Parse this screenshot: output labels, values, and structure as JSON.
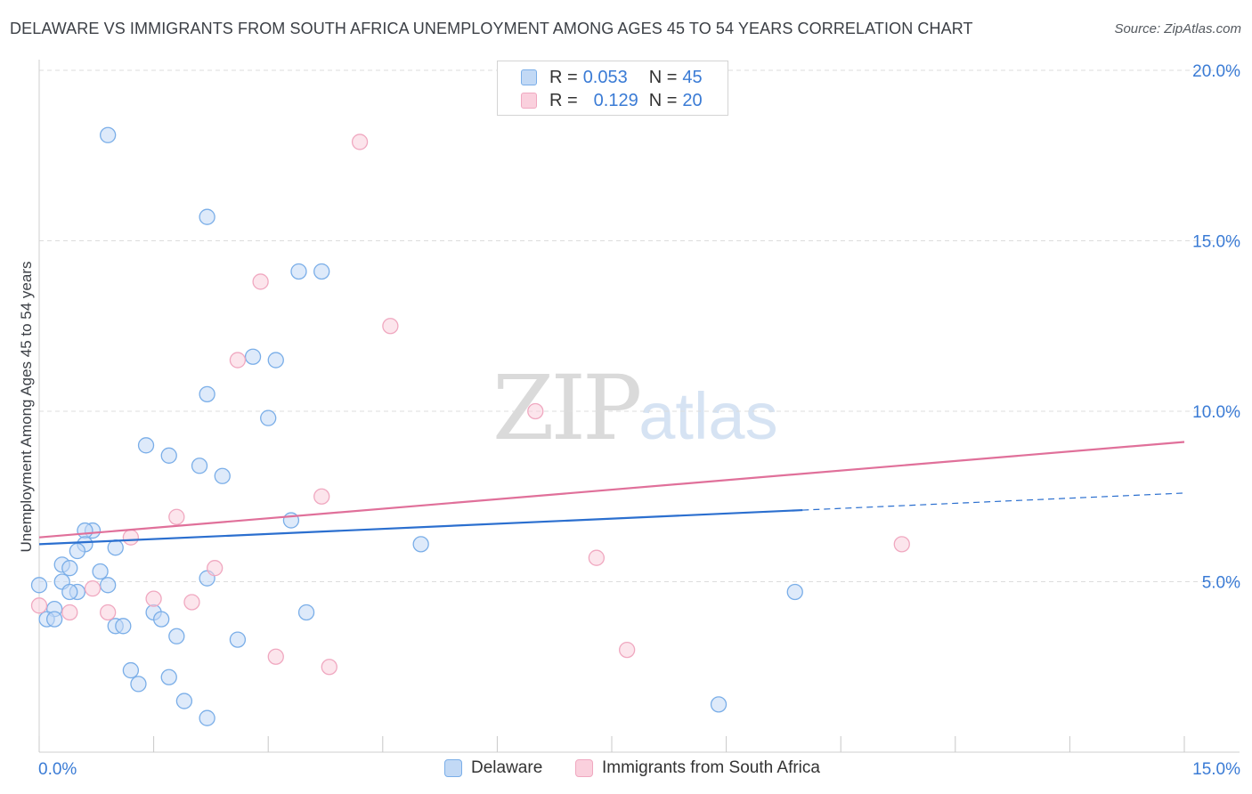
{
  "chart_data": {
    "type": "scatter",
    "title": "DELAWARE VS IMMIGRANTS FROM SOUTH AFRICA UNEMPLOYMENT AMONG AGES 45 TO 54 YEARS CORRELATION CHART",
    "source": "Source: ZipAtlas.com",
    "ylabel": "Unemployment Among Ages 45 to 54 years",
    "xlim": [
      0,
      15
    ],
    "ylim": [
      0,
      20
    ],
    "x_ticks": [
      {
        "value": 0,
        "label": "0.0%"
      },
      {
        "value": 15,
        "label": "15.0%"
      }
    ],
    "y_ticks": [
      {
        "value": 5,
        "label": "5.0%"
      },
      {
        "value": 10,
        "label": "10.0%"
      },
      {
        "value": 15,
        "label": "15.0%"
      },
      {
        "value": 20,
        "label": "20.0%"
      }
    ],
    "legend": [
      {
        "r_label": "R =",
        "r": "0.053",
        "n_label": "N =",
        "n": "45"
      },
      {
        "r_label": "R =",
        "r": "0.129",
        "n_label": "N =",
        "n": "20"
      }
    ],
    "series": [
      {
        "name": "Delaware",
        "color": "#7aaee8",
        "fill": "#c2d9f5",
        "trend_color": "#2b6fcf",
        "trend": {
          "x0": 0,
          "y0": 6.1,
          "x1": 10.0,
          "y1": 7.1,
          "dash_x1": 15.0,
          "dash_y1": 7.6
        },
        "points": [
          [
            0.9,
            18.1
          ],
          [
            2.2,
            15.7
          ],
          [
            3.4,
            14.1
          ],
          [
            3.7,
            14.1
          ],
          [
            2.8,
            11.6
          ],
          [
            3.1,
            11.5
          ],
          [
            2.2,
            10.5
          ],
          [
            3.0,
            9.8
          ],
          [
            1.4,
            9.0
          ],
          [
            1.7,
            8.7
          ],
          [
            2.1,
            8.4
          ],
          [
            2.4,
            8.1
          ],
          [
            3.3,
            6.8
          ],
          [
            0.7,
            6.5
          ],
          [
            0.6,
            6.5
          ],
          [
            0.6,
            6.1
          ],
          [
            0.5,
            5.9
          ],
          [
            1.0,
            6.0
          ],
          [
            0.3,
            5.5
          ],
          [
            0.4,
            5.4
          ],
          [
            0.8,
            5.3
          ],
          [
            0.3,
            5.0
          ],
          [
            0.0,
            4.9
          ],
          [
            0.9,
            4.9
          ],
          [
            2.2,
            5.1
          ],
          [
            0.5,
            4.7
          ],
          [
            0.4,
            4.7
          ],
          [
            0.2,
            4.2
          ],
          [
            0.1,
            3.9
          ],
          [
            0.2,
            3.9
          ],
          [
            1.5,
            4.1
          ],
          [
            1.6,
            3.9
          ],
          [
            1.0,
            3.7
          ],
          [
            1.1,
            3.7
          ],
          [
            3.5,
            4.1
          ],
          [
            1.8,
            3.4
          ],
          [
            2.6,
            3.3
          ],
          [
            1.2,
            2.4
          ],
          [
            1.3,
            2.0
          ],
          [
            1.7,
            2.2
          ],
          [
            1.9,
            1.5
          ],
          [
            2.2,
            1.0
          ],
          [
            5.0,
            6.1
          ],
          [
            9.9,
            4.7
          ],
          [
            8.9,
            1.4
          ]
        ]
      },
      {
        "name": "Immigrants from South Africa",
        "color": "#f0a8c0",
        "fill": "#fad0dd",
        "trend_color": "#e0709a",
        "trend": {
          "x0": 0,
          "y0": 6.3,
          "x1": 15.0,
          "y1": 9.1
        },
        "points": [
          [
            4.2,
            17.9
          ],
          [
            2.9,
            13.8
          ],
          [
            4.6,
            12.5
          ],
          [
            2.6,
            11.5
          ],
          [
            6.5,
            10.0
          ],
          [
            3.7,
            7.5
          ],
          [
            1.8,
            6.9
          ],
          [
            1.2,
            6.3
          ],
          [
            2.3,
            5.4
          ],
          [
            0.0,
            4.3
          ],
          [
            0.4,
            4.1
          ],
          [
            0.7,
            4.8
          ],
          [
            0.9,
            4.1
          ],
          [
            1.5,
            4.5
          ],
          [
            2.0,
            4.4
          ],
          [
            7.3,
            5.7
          ],
          [
            3.1,
            2.8
          ],
          [
            3.8,
            2.5
          ],
          [
            7.7,
            3.0
          ],
          [
            11.3,
            6.1
          ]
        ]
      }
    ]
  },
  "watermark": {
    "zip": "ZIP",
    "atlas": "atlas"
  }
}
